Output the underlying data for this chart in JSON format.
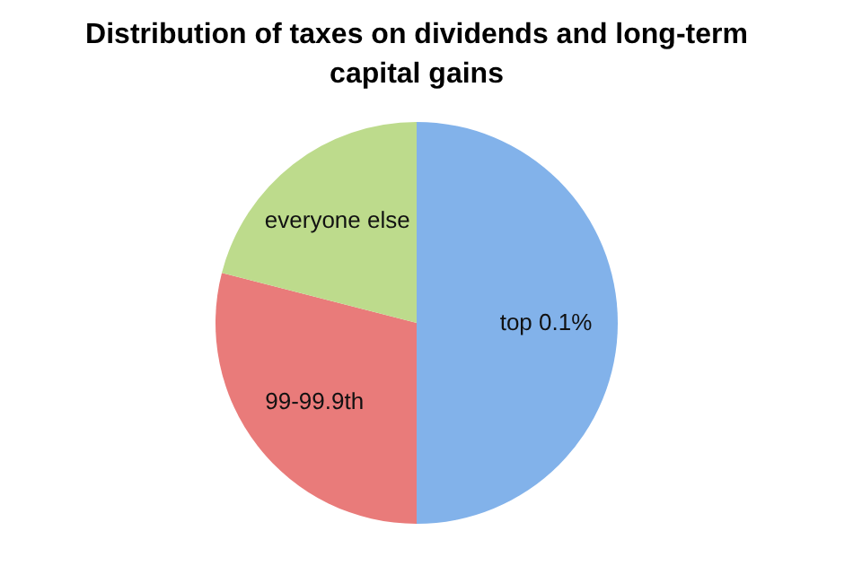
{
  "chart_data": {
    "type": "pie",
    "title": "Distribution of taxes on dividends and long-term capital gains",
    "categories": [
      "top 0.1%",
      "99-99.9th",
      "everyone else"
    ],
    "values": [
      50,
      29,
      21
    ],
    "colors": [
      "#82b2ea",
      "#e97b7a",
      "#bddb8c"
    ],
    "legend": false
  }
}
